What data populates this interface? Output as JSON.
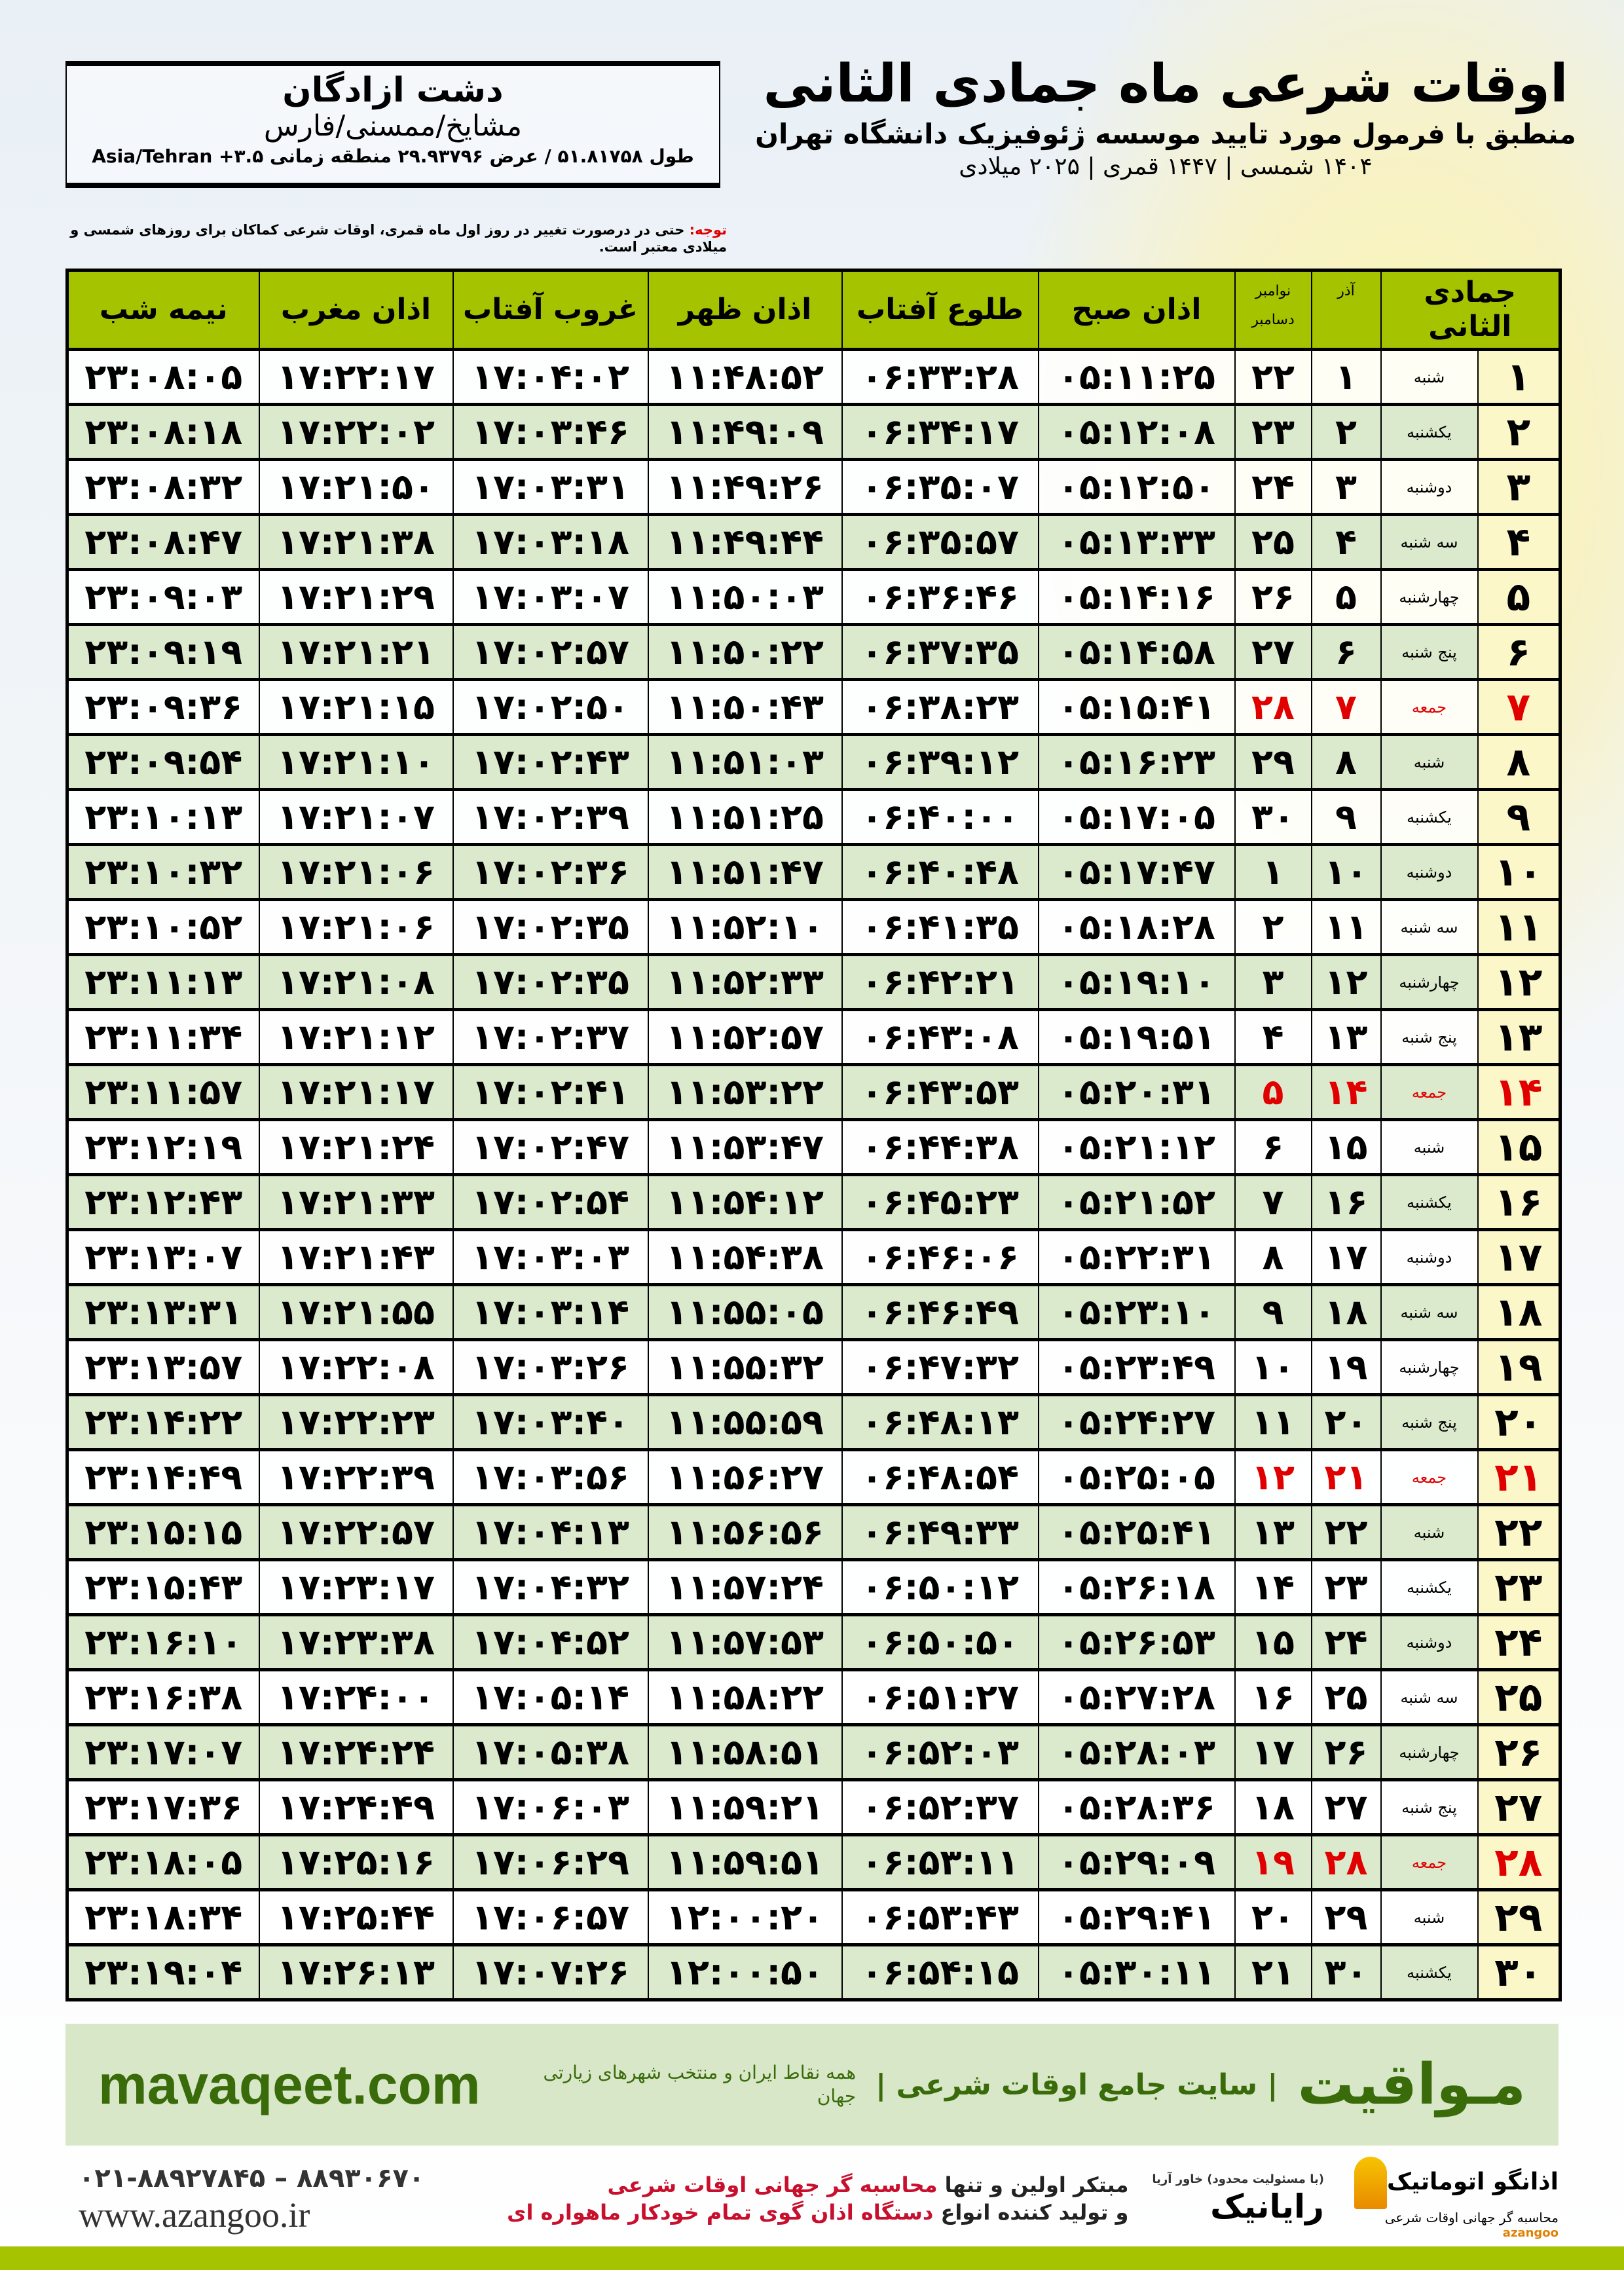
{
  "header": {
    "title": "اوقات شرعی ماه جمادی الثانی",
    "subtitle": "منطبق با فرمول مورد تایید موسسه ژئوفیزیک دانشگاه تهران",
    "dates": "۱۴۰۴ شمسی | ۱۴۴۷ قمری | ۲۰۲۵ میلادی"
  },
  "location": {
    "city": "دشت ازادگان",
    "province": "مشایخ/ممسنی/فارس",
    "coords": "طول ۵۱.۸۱۷۵۸ / عرض ۲۹.۹۳۷۹۶ منطقه زمانی ۳.۵+ Asia/Tehran"
  },
  "note": {
    "label": "توجه:",
    "text": " حتی در درصورت تغییر در روز اول ماه قمری، اوقات شرعی کماکان برای روزهای شمسی و میلادی معتبر است."
  },
  "table": {
    "headers": {
      "month": "جمادی الثانی",
      "azar": "آذر",
      "nov": "نوامبر",
      "dec": "دسامبر",
      "fajr": "اذان صبح",
      "sunrise": "طلوع آفتاب",
      "dhuhr": "اذان ظهر",
      "sunset": "غروب آفتاب",
      "maghrib": "اذان مغرب",
      "midnight": "نیمه شب"
    },
    "holiday_color": "#e00000",
    "header_color": "#a6c300",
    "rows": [
      {
        "day": "۱",
        "weekday": "شنبه",
        "azar": "۱",
        "dec": "۲۲",
        "fajr": "۰۵:۱۱:۲۵",
        "sunrise": "۰۶:۳۳:۲۸",
        "dhuhr": "۱۱:۴۸:۵۲",
        "sunset": "۱۷:۰۴:۰۲",
        "maghrib": "۱۷:۲۲:۱۷",
        "midnight": "۲۳:۰۸:۰۵",
        "holiday": false
      },
      {
        "day": "۲",
        "weekday": "یکشنبه",
        "azar": "۲",
        "dec": "۲۳",
        "fajr": "۰۵:۱۲:۰۸",
        "sunrise": "۰۶:۳۴:۱۷",
        "dhuhr": "۱۱:۴۹:۰۹",
        "sunset": "۱۷:۰۳:۴۶",
        "maghrib": "۱۷:۲۲:۰۲",
        "midnight": "۲۳:۰۸:۱۸",
        "holiday": false
      },
      {
        "day": "۳",
        "weekday": "دوشنبه",
        "azar": "۳",
        "dec": "۲۴",
        "fajr": "۰۵:۱۲:۵۰",
        "sunrise": "۰۶:۳۵:۰۷",
        "dhuhr": "۱۱:۴۹:۲۶",
        "sunset": "۱۷:۰۳:۳۱",
        "maghrib": "۱۷:۲۱:۵۰",
        "midnight": "۲۳:۰۸:۳۲",
        "holiday": false
      },
      {
        "day": "۴",
        "weekday": "سه شنبه",
        "azar": "۴",
        "dec": "۲۵",
        "fajr": "۰۵:۱۳:۳۳",
        "sunrise": "۰۶:۳۵:۵۷",
        "dhuhr": "۱۱:۴۹:۴۴",
        "sunset": "۱۷:۰۳:۱۸",
        "maghrib": "۱۷:۲۱:۳۸",
        "midnight": "۲۳:۰۸:۴۷",
        "holiday": false
      },
      {
        "day": "۵",
        "weekday": "چهارشنبه",
        "azar": "۵",
        "dec": "۲۶",
        "fajr": "۰۵:۱۴:۱۶",
        "sunrise": "۰۶:۳۶:۴۶",
        "dhuhr": "۱۱:۵۰:۰۳",
        "sunset": "۱۷:۰۳:۰۷",
        "maghrib": "۱۷:۲۱:۲۹",
        "midnight": "۲۳:۰۹:۰۳",
        "holiday": false
      },
      {
        "day": "۶",
        "weekday": "پنج شنبه",
        "azar": "۶",
        "dec": "۲۷",
        "fajr": "۰۵:۱۴:۵۸",
        "sunrise": "۰۶:۳۷:۳۵",
        "dhuhr": "۱۱:۵۰:۲۲",
        "sunset": "۱۷:۰۲:۵۷",
        "maghrib": "۱۷:۲۱:۲۱",
        "midnight": "۲۳:۰۹:۱۹",
        "holiday": false
      },
      {
        "day": "۷",
        "weekday": "جمعه",
        "azar": "۷",
        "dec": "۲۸",
        "fajr": "۰۵:۱۵:۴۱",
        "sunrise": "۰۶:۳۸:۲۳",
        "dhuhr": "۱۱:۵۰:۴۳",
        "sunset": "۱۷:۰۲:۵۰",
        "maghrib": "۱۷:۲۱:۱۵",
        "midnight": "۲۳:۰۹:۳۶",
        "holiday": true
      },
      {
        "day": "۸",
        "weekday": "شنبه",
        "azar": "۸",
        "dec": "۲۹",
        "fajr": "۰۵:۱۶:۲۳",
        "sunrise": "۰۶:۳۹:۱۲",
        "dhuhr": "۱۱:۵۱:۰۳",
        "sunset": "۱۷:۰۲:۴۳",
        "maghrib": "۱۷:۲۱:۱۰",
        "midnight": "۲۳:۰۹:۵۴",
        "holiday": false
      },
      {
        "day": "۹",
        "weekday": "یکشنبه",
        "azar": "۹",
        "dec": "۳۰",
        "fajr": "۰۵:۱۷:۰۵",
        "sunrise": "۰۶:۴۰:۰۰",
        "dhuhr": "۱۱:۵۱:۲۵",
        "sunset": "۱۷:۰۲:۳۹",
        "maghrib": "۱۷:۲۱:۰۷",
        "midnight": "۲۳:۱۰:۱۳",
        "holiday": false
      },
      {
        "day": "۱۰",
        "weekday": "دوشنبه",
        "azar": "۱۰",
        "dec": "۱",
        "fajr": "۰۵:۱۷:۴۷",
        "sunrise": "۰۶:۴۰:۴۸",
        "dhuhr": "۱۱:۵۱:۴۷",
        "sunset": "۱۷:۰۲:۳۶",
        "maghrib": "۱۷:۲۱:۰۶",
        "midnight": "۲۳:۱۰:۳۲",
        "holiday": false
      },
      {
        "day": "۱۱",
        "weekday": "سه شنبه",
        "azar": "۱۱",
        "dec": "۲",
        "fajr": "۰۵:۱۸:۲۸",
        "sunrise": "۰۶:۴۱:۳۵",
        "dhuhr": "۱۱:۵۲:۱۰",
        "sunset": "۱۷:۰۲:۳۵",
        "maghrib": "۱۷:۲۱:۰۶",
        "midnight": "۲۳:۱۰:۵۲",
        "holiday": false
      },
      {
        "day": "۱۲",
        "weekday": "چهارشنبه",
        "azar": "۱۲",
        "dec": "۳",
        "fajr": "۰۵:۱۹:۱۰",
        "sunrise": "۰۶:۴۲:۲۱",
        "dhuhr": "۱۱:۵۲:۳۳",
        "sunset": "۱۷:۰۲:۳۵",
        "maghrib": "۱۷:۲۱:۰۸",
        "midnight": "۲۳:۱۱:۱۳",
        "holiday": false
      },
      {
        "day": "۱۳",
        "weekday": "پنج شنبه",
        "azar": "۱۳",
        "dec": "۴",
        "fajr": "۰۵:۱۹:۵۱",
        "sunrise": "۰۶:۴۳:۰۸",
        "dhuhr": "۱۱:۵۲:۵۷",
        "sunset": "۱۷:۰۲:۳۷",
        "maghrib": "۱۷:۲۱:۱۲",
        "midnight": "۲۳:۱۱:۳۴",
        "holiday": false
      },
      {
        "day": "۱۴",
        "weekday": "جمعه",
        "azar": "۱۴",
        "dec": "۵",
        "fajr": "۰۵:۲۰:۳۱",
        "sunrise": "۰۶:۴۳:۵۳",
        "dhuhr": "۱۱:۵۳:۲۲",
        "sunset": "۱۷:۰۲:۴۱",
        "maghrib": "۱۷:۲۱:۱۷",
        "midnight": "۲۳:۱۱:۵۷",
        "holiday": true
      },
      {
        "day": "۱۵",
        "weekday": "شنبه",
        "azar": "۱۵",
        "dec": "۶",
        "fajr": "۰۵:۲۱:۱۲",
        "sunrise": "۰۶:۴۴:۳۸",
        "dhuhr": "۱۱:۵۳:۴۷",
        "sunset": "۱۷:۰۲:۴۷",
        "maghrib": "۱۷:۲۱:۲۴",
        "midnight": "۲۳:۱۲:۱۹",
        "holiday": false
      },
      {
        "day": "۱۶",
        "weekday": "یکشنبه",
        "azar": "۱۶",
        "dec": "۷",
        "fajr": "۰۵:۲۱:۵۲",
        "sunrise": "۰۶:۴۵:۲۳",
        "dhuhr": "۱۱:۵۴:۱۲",
        "sunset": "۱۷:۰۲:۵۴",
        "maghrib": "۱۷:۲۱:۳۳",
        "midnight": "۲۳:۱۲:۴۳",
        "holiday": false
      },
      {
        "day": "۱۷",
        "weekday": "دوشنبه",
        "azar": "۱۷",
        "dec": "۸",
        "fajr": "۰۵:۲۲:۳۱",
        "sunrise": "۰۶:۴۶:۰۶",
        "dhuhr": "۱۱:۵۴:۳۸",
        "sunset": "۱۷:۰۳:۰۳",
        "maghrib": "۱۷:۲۱:۴۳",
        "midnight": "۲۳:۱۳:۰۷",
        "holiday": false
      },
      {
        "day": "۱۸",
        "weekday": "سه شنبه",
        "azar": "۱۸",
        "dec": "۹",
        "fajr": "۰۵:۲۳:۱۰",
        "sunrise": "۰۶:۴۶:۴۹",
        "dhuhr": "۱۱:۵۵:۰۵",
        "sunset": "۱۷:۰۳:۱۴",
        "maghrib": "۱۷:۲۱:۵۵",
        "midnight": "۲۳:۱۳:۳۱",
        "holiday": false
      },
      {
        "day": "۱۹",
        "weekday": "چهارشنبه",
        "azar": "۱۹",
        "dec": "۱۰",
        "fajr": "۰۵:۲۳:۴۹",
        "sunrise": "۰۶:۴۷:۳۲",
        "dhuhr": "۱۱:۵۵:۳۲",
        "sunset": "۱۷:۰۳:۲۶",
        "maghrib": "۱۷:۲۲:۰۸",
        "midnight": "۲۳:۱۳:۵۷",
        "holiday": false
      },
      {
        "day": "۲۰",
        "weekday": "پنج شنبه",
        "azar": "۲۰",
        "dec": "۱۱",
        "fajr": "۰۵:۲۴:۲۷",
        "sunrise": "۰۶:۴۸:۱۳",
        "dhuhr": "۱۱:۵۵:۵۹",
        "sunset": "۱۷:۰۳:۴۰",
        "maghrib": "۱۷:۲۲:۲۳",
        "midnight": "۲۳:۱۴:۲۲",
        "holiday": false
      },
      {
        "day": "۲۱",
        "weekday": "جمعه",
        "azar": "۲۱",
        "dec": "۱۲",
        "fajr": "۰۵:۲۵:۰۵",
        "sunrise": "۰۶:۴۸:۵۴",
        "dhuhr": "۱۱:۵۶:۲۷",
        "sunset": "۱۷:۰۳:۵۶",
        "maghrib": "۱۷:۲۲:۳۹",
        "midnight": "۲۳:۱۴:۴۹",
        "holiday": true
      },
      {
        "day": "۲۲",
        "weekday": "شنبه",
        "azar": "۲۲",
        "dec": "۱۳",
        "fajr": "۰۵:۲۵:۴۱",
        "sunrise": "۰۶:۴۹:۳۳",
        "dhuhr": "۱۱:۵۶:۵۶",
        "sunset": "۱۷:۰۴:۱۳",
        "maghrib": "۱۷:۲۲:۵۷",
        "midnight": "۲۳:۱۵:۱۵",
        "holiday": false
      },
      {
        "day": "۲۳",
        "weekday": "یکشنبه",
        "azar": "۲۳",
        "dec": "۱۴",
        "fajr": "۰۵:۲۶:۱۸",
        "sunrise": "۰۶:۵۰:۱۲",
        "dhuhr": "۱۱:۵۷:۲۴",
        "sunset": "۱۷:۰۴:۳۲",
        "maghrib": "۱۷:۲۳:۱۷",
        "midnight": "۲۳:۱۵:۴۳",
        "holiday": false
      },
      {
        "day": "۲۴",
        "weekday": "دوشنبه",
        "azar": "۲۴",
        "dec": "۱۵",
        "fajr": "۰۵:۲۶:۵۳",
        "sunrise": "۰۶:۵۰:۵۰",
        "dhuhr": "۱۱:۵۷:۵۳",
        "sunset": "۱۷:۰۴:۵۲",
        "maghrib": "۱۷:۲۳:۳۸",
        "midnight": "۲۳:۱۶:۱۰",
        "holiday": false
      },
      {
        "day": "۲۵",
        "weekday": "سه شنبه",
        "azar": "۲۵",
        "dec": "۱۶",
        "fajr": "۰۵:۲۷:۲۸",
        "sunrise": "۰۶:۵۱:۲۷",
        "dhuhr": "۱۱:۵۸:۲۲",
        "sunset": "۱۷:۰۵:۱۴",
        "maghrib": "۱۷:۲۴:۰۰",
        "midnight": "۲۳:۱۶:۳۸",
        "holiday": false
      },
      {
        "day": "۲۶",
        "weekday": "چهارشنبه",
        "azar": "۲۶",
        "dec": "۱۷",
        "fajr": "۰۵:۲۸:۰۳",
        "sunrise": "۰۶:۵۲:۰۳",
        "dhuhr": "۱۱:۵۸:۵۱",
        "sunset": "۱۷:۰۵:۳۸",
        "maghrib": "۱۷:۲۴:۲۴",
        "midnight": "۲۳:۱۷:۰۷",
        "holiday": false
      },
      {
        "day": "۲۷",
        "weekday": "پنج شنبه",
        "azar": "۲۷",
        "dec": "۱۸",
        "fajr": "۰۵:۲۸:۳۶",
        "sunrise": "۰۶:۵۲:۳۷",
        "dhuhr": "۱۱:۵۹:۲۱",
        "sunset": "۱۷:۰۶:۰۳",
        "maghrib": "۱۷:۲۴:۴۹",
        "midnight": "۲۳:۱۷:۳۶",
        "holiday": false
      },
      {
        "day": "۲۸",
        "weekday": "جمعه",
        "azar": "۲۸",
        "dec": "۱۹",
        "fajr": "۰۵:۲۹:۰۹",
        "sunrise": "۰۶:۵۳:۱۱",
        "dhuhr": "۱۱:۵۹:۵۱",
        "sunset": "۱۷:۰۶:۲۹",
        "maghrib": "۱۷:۲۵:۱۶",
        "midnight": "۲۳:۱۸:۰۵",
        "holiday": true
      },
      {
        "day": "۲۹",
        "weekday": "شنبه",
        "azar": "۲۹",
        "dec": "۲۰",
        "fajr": "۰۵:۲۹:۴۱",
        "sunrise": "۰۶:۵۳:۴۳",
        "dhuhr": "۱۲:۰۰:۲۰",
        "sunset": "۱۷:۰۶:۵۷",
        "maghrib": "۱۷:۲۵:۴۴",
        "midnight": "۲۳:۱۸:۳۴",
        "holiday": false
      },
      {
        "day": "۳۰",
        "weekday": "یکشنبه",
        "azar": "۳۰",
        "dec": "۲۱",
        "fajr": "۰۵:۳۰:۱۱",
        "sunrise": "۰۶:۵۴:۱۵",
        "dhuhr": "۱۲:۰۰:۵۰",
        "sunset": "۱۷:۰۷:۲۶",
        "maghrib": "۱۷:۲۶:۱۳",
        "midnight": "۲۳:۱۹:۰۴",
        "holiday": false
      }
    ]
  },
  "footer": {
    "brand": "مـواقیت",
    "tagline": "| سایت جامع اوقات شرعی |",
    "sub": "همه نقاط ایران و منتخب شهرهای زیارتی جهان",
    "url": "mavaqeet.com",
    "phone": "۰۲۱-۸۸۹۲۷۸۴۵ – ۸۸۹۳۰۶۷۰",
    "site": "www.azangoo.ir",
    "promo1a": "مبتکر اولین و تنها ",
    "promo1b": "محاسبه گر جهانی اوقات شرعی",
    "promo2a": "و تولید کننده انواع ",
    "promo2b": "دستگاه اذان گوی تمام خودکار ماهواره ای",
    "logo_rayanik": "رایانیک",
    "logo_rayanik_small": "(با مسئولیت محدود) خاور آریا",
    "logo_azangoo": "اذانگو اتوماتیک",
    "logo_azangoo_sub": "محاسبه گر جهانی اوقات شرعی",
    "logo_azangoo_en": "azangoo",
    "brand_color": "#3a6b0a",
    "accent_color": "#a6c300"
  }
}
